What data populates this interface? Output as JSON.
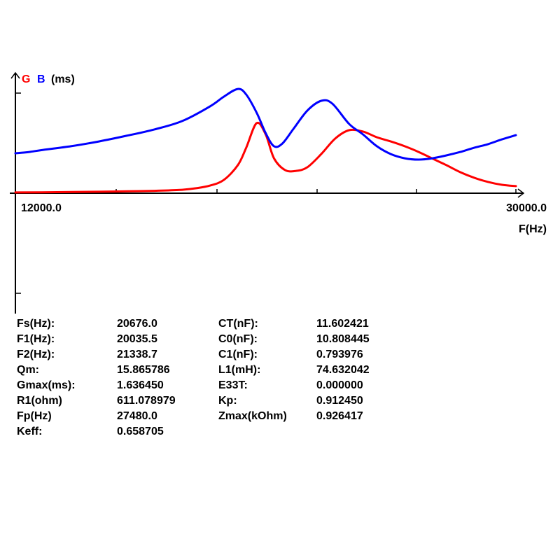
{
  "chart_data": {
    "type": "line",
    "legend": {
      "g_label": "G",
      "b_label": "B",
      "unit_label": "(ms)"
    },
    "x_start_label": "12000.0",
    "x_end_label": "30000.0",
    "xlabel": "F(Hz)",
    "xlim": [
      12000,
      30000
    ],
    "ylim_units": "relative",
    "series": [
      {
        "name": "G",
        "color": "#ff0000",
        "x": [
          12000,
          13500,
          15000,
          16000,
          17000,
          18000,
          18500,
          19000,
          19500,
          20000,
          20300,
          20676,
          21000,
          21300,
          21700,
          22100,
          22500,
          23000,
          23500,
          24000,
          24500,
          25000,
          25500,
          26000,
          26500,
          27000,
          27500,
          28000,
          28500,
          29000,
          29500,
          30000
        ],
        "y": [
          0.007,
          0.01,
          0.014,
          0.018,
          0.023,
          0.033,
          0.047,
          0.073,
          0.127,
          0.267,
          0.433,
          0.667,
          0.56,
          0.333,
          0.22,
          0.213,
          0.247,
          0.373,
          0.52,
          0.6,
          0.587,
          0.533,
          0.493,
          0.447,
          0.393,
          0.33,
          0.267,
          0.2,
          0.147,
          0.107,
          0.08,
          0.067
        ]
      },
      {
        "name": "B",
        "color": "#0000ff",
        "x": [
          12000,
          12500,
          13000,
          14000,
          15000,
          16000,
          17000,
          18000,
          19000,
          19500,
          20000,
          20300,
          20676,
          21000,
          21300,
          21600,
          22000,
          22500,
          23000,
          23400,
          24000,
          24500,
          25000,
          25500,
          26000,
          26500,
          27000,
          27500,
          28000,
          28500,
          29000,
          29500,
          30000
        ],
        "y": [
          0.38,
          0.393,
          0.413,
          0.447,
          0.493,
          0.547,
          0.607,
          0.687,
          0.827,
          0.92,
          0.993,
          0.94,
          0.767,
          0.573,
          0.447,
          0.473,
          0.613,
          0.787,
          0.88,
          0.853,
          0.66,
          0.56,
          0.447,
          0.373,
          0.333,
          0.32,
          0.333,
          0.36,
          0.393,
          0.433,
          0.467,
          0.513,
          0.553
        ]
      }
    ]
  },
  "params": {
    "rows": [
      {
        "label1": "Fs(Hz):",
        "value1": "20676.0",
        "label2": "CT(nF):",
        "value2": "11.602421"
      },
      {
        "label1": "F1(Hz):",
        "value1": "20035.5",
        "label2": "C0(nF):",
        "value2": "10.808445"
      },
      {
        "label1": "F2(Hz):",
        "value1": "21338.7",
        "label2": "C1(nF):",
        "value2": "0.793976"
      },
      {
        "label1": "Qm:",
        "value1": "15.865786",
        "label2": "L1(mH):",
        "value2": "74.632042"
      },
      {
        "label1": "Gmax(ms):",
        "value1": "1.636450",
        "label2": "E33T:",
        "value2": "0.000000"
      },
      {
        "label1": "R1(ohm)",
        "value1": "611.078979",
        "label2": "Kp:",
        "value2": "0.912450"
      },
      {
        "label1": "Fp(Hz)",
        "value1": "27480.0",
        "label2": "Zmax(kOhm)",
        "value2": "0.926417"
      },
      {
        "label1": "Keff:",
        "value1": "0.658705",
        "label2": "",
        "value2": ""
      }
    ]
  }
}
